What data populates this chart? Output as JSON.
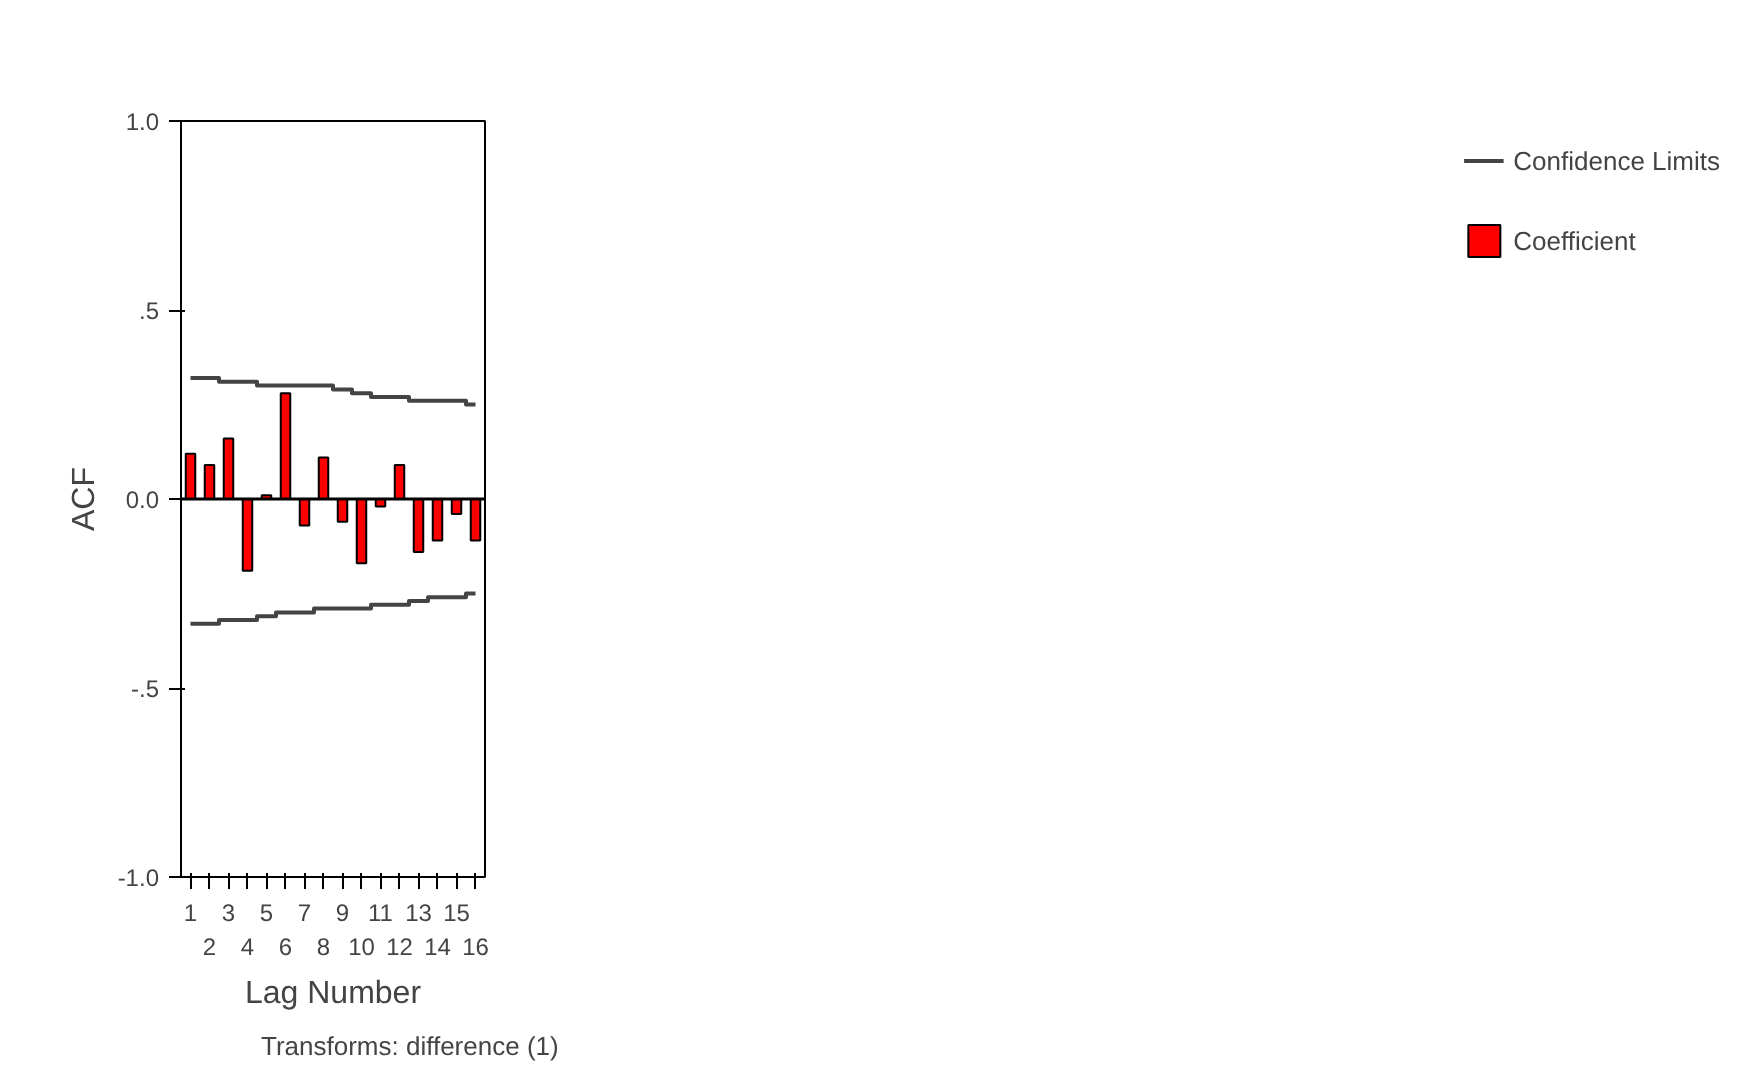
{
  "chart_data": {
    "type": "bar",
    "xlabel": "Lag Number",
    "ylabel": "ACF",
    "annotations": [
      "Transforms: difference (1)"
    ],
    "categories": [
      "1",
      "2",
      "3",
      "4",
      "5",
      "6",
      "7",
      "8",
      "9",
      "10",
      "11",
      "12",
      "13",
      "14",
      "15",
      "16"
    ],
    "series": [
      {
        "name": "Coefficient",
        "color": "#ff0000",
        "values": [
          0.12,
          0.09,
          0.16,
          -0.19,
          0.01,
          0.28,
          -0.07,
          0.11,
          -0.06,
          -0.17,
          -0.02,
          0.09,
          -0.14,
          -0.11,
          -0.04,
          -0.11
        ]
      },
      {
        "name": "Confidence Limits",
        "type": "step",
        "color": "#444444",
        "values": [
          0.32,
          0.32,
          0.31,
          0.31,
          0.3,
          0.3,
          0.3,
          0.3,
          0.29,
          0.28,
          0.27,
          0.27,
          0.26,
          0.26,
          0.26,
          0.25
        ]
      },
      {
        "type": "step",
        "color": "#444444",
        "values": [
          -0.33,
          -0.33,
          -0.32,
          -0.32,
          -0.31,
          -0.3,
          -0.3,
          -0.29,
          -0.29,
          -0.29,
          -0.28,
          -0.28,
          -0.27,
          -0.26,
          -0.26,
          -0.25
        ]
      }
    ],
    "ylim": [
      -1.0,
      1.0
    ],
    "yticks": [
      {
        "value": -1.0,
        "label": "-1.0"
      },
      {
        "value": -0.5,
        "label": "-.5"
      },
      {
        "value": 0,
        "label": "0.0"
      },
      {
        "value": 0.5,
        "label": ".5"
      },
      {
        "value": 1.0,
        "label": "1.0"
      }
    ],
    "ref_lines": [
      {
        "axis": "y",
        "value": 0
      }
    ],
    "grid": false,
    "legend": "right"
  }
}
